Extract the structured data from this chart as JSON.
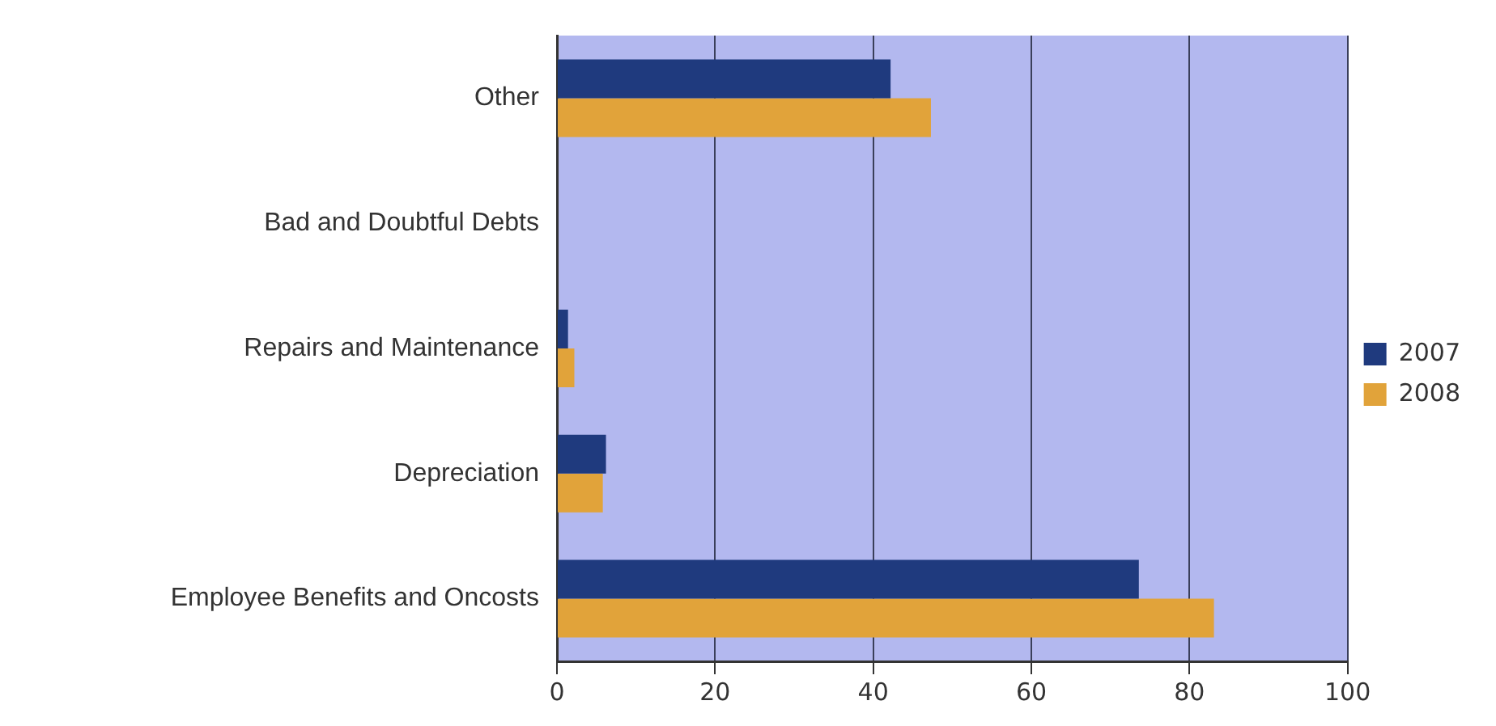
{
  "chart_data": {
    "type": "bar",
    "orientation": "horizontal",
    "categories": [
      "Other",
      "Bad and Doubtful Debts",
      "Repairs and Maintenance",
      "Depreciation",
      "Employee Benefits and Oncosts"
    ],
    "series": [
      {
        "name": "2007",
        "color": "#1f3a7e",
        "values": [
          42.2,
          0,
          1.4,
          6.2,
          73.6
        ]
      },
      {
        "name": "2008",
        "color": "#e1a33a",
        "values": [
          47.3,
          0,
          2.2,
          5.8,
          83.1
        ]
      }
    ],
    "xlim": [
      0,
      100
    ],
    "xticks": [
      0,
      20,
      40,
      60,
      80,
      100
    ],
    "grid": "x",
    "legend": "right"
  }
}
